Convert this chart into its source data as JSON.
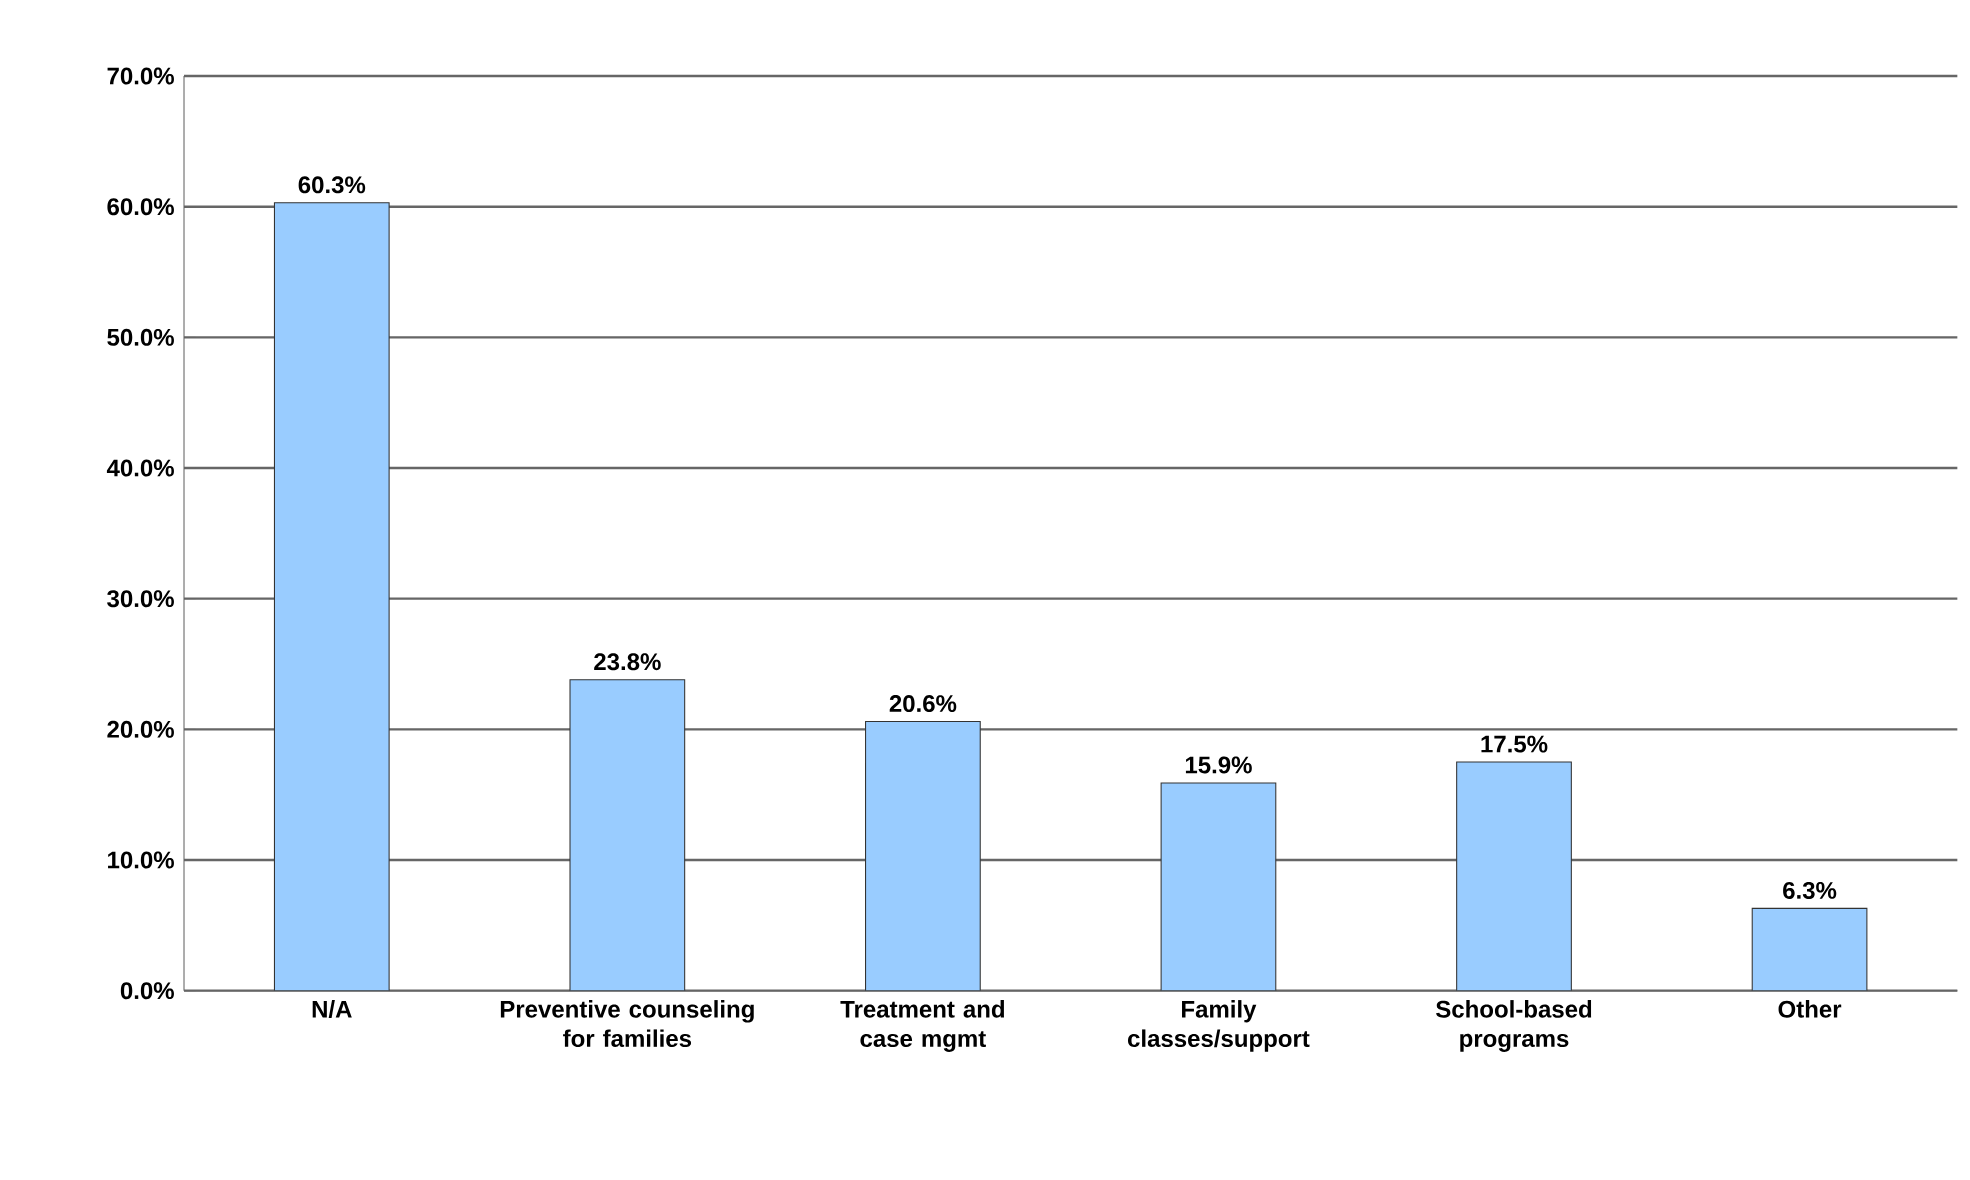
{
  "chart_data": {
    "type": "bar",
    "categories": [
      "N/A",
      "Preventive counseling for families",
      "Treatment and case mgmt",
      "Family classes/support",
      "School-based programs",
      "Other"
    ],
    "values": [
      60.3,
      23.8,
      20.6,
      15.9,
      17.5,
      6.3
    ],
    "value_labels": [
      "60.3%",
      "23.8%",
      "20.6%",
      "15.9%",
      "17.5%",
      "6.3%"
    ],
    "color": "#99ccff",
    "ylim": [
      0,
      70
    ],
    "yticks": [
      {
        "value": 0,
        "label": "0.0%"
      },
      {
        "value": 10,
        "label": "10.0%"
      },
      {
        "value": 20,
        "label": "20.0%"
      },
      {
        "value": 30,
        "label": "30.0%"
      },
      {
        "value": 40,
        "label": "40.0%"
      },
      {
        "value": 50,
        "label": "50.0%"
      },
      {
        "value": 60,
        "label": "60.0%"
      },
      {
        "value": 70,
        "label": "70.0%"
      }
    ],
    "grid": "y"
  }
}
